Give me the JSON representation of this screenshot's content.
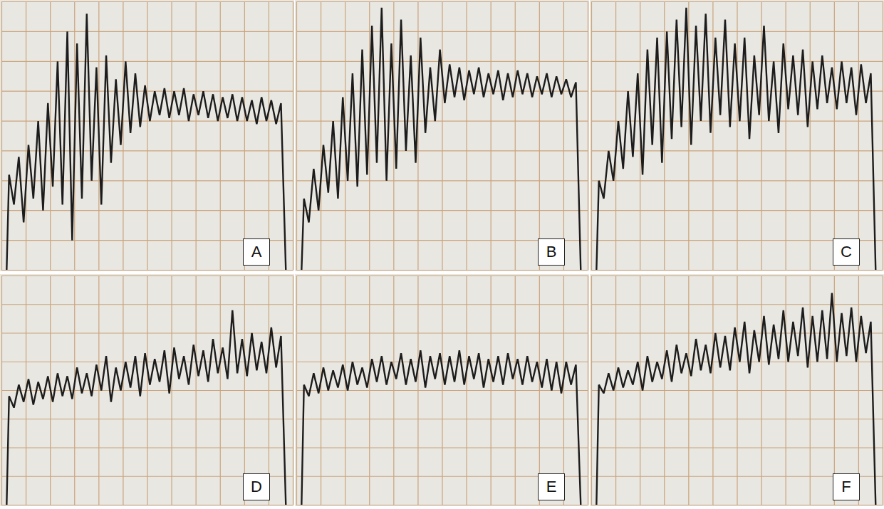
{
  "chart_data": [
    {
      "type": "line",
      "title": "A",
      "color": "#1c1c1c",
      "grid": true,
      "tick_labels": false,
      "xlim": [
        0,
        12
      ],
      "xticks": [
        0,
        1,
        2,
        3,
        4,
        5,
        6,
        7,
        8,
        9,
        10,
        11,
        12
      ],
      "ylim": [
        0,
        9
      ],
      "yticks": [
        0,
        1,
        2,
        3,
        4,
        5,
        6,
        7,
        8,
        9
      ],
      "x": [
        0.2,
        0.3,
        0.5,
        0.7,
        0.9,
        1.1,
        1.3,
        1.5,
        1.7,
        1.9,
        2.1,
        2.3,
        2.5,
        2.7,
        2.9,
        3.1,
        3.3,
        3.5,
        3.7,
        3.9,
        4.1,
        4.3,
        4.5,
        4.7,
        4.9,
        5.1,
        5.3,
        5.5,
        5.7,
        5.9,
        6.1,
        6.3,
        6.5,
        6.7,
        6.9,
        7.1,
        7.3,
        7.5,
        7.7,
        7.9,
        8.1,
        8.3,
        8.5,
        8.7,
        8.9,
        9.1,
        9.3,
        9.5,
        9.7,
        9.9,
        10.1,
        10.3,
        10.5,
        10.7,
        10.9,
        11.1,
        11.3,
        11.5,
        11.7
      ],
      "values": [
        0,
        3.2,
        2.2,
        3.8,
        1.6,
        4.2,
        2.4,
        5.0,
        2.0,
        5.6,
        2.8,
        7.0,
        2.2,
        8.0,
        1.0,
        7.6,
        2.4,
        8.6,
        3.0,
        6.8,
        2.2,
        7.2,
        3.6,
        6.4,
        4.2,
        7.0,
        4.6,
        6.6,
        4.8,
        6.2,
        5.0,
        6.0,
        5.2,
        6.1,
        5.1,
        6.0,
        5.2,
        6.1,
        5.0,
        5.9,
        5.2,
        6.0,
        5.1,
        5.9,
        5.0,
        5.8,
        5.1,
        5.9,
        5.0,
        5.8,
        5.0,
        5.7,
        4.9,
        5.8,
        5.0,
        5.7,
        4.9,
        5.6,
        0
      ]
    },
    {
      "type": "line",
      "title": "B",
      "color": "#1c1c1c",
      "grid": true,
      "tick_labels": false,
      "xlim": [
        0,
        12
      ],
      "xticks": [
        0,
        1,
        2,
        3,
        4,
        5,
        6,
        7,
        8,
        9,
        10,
        11,
        12
      ],
      "ylim": [
        0,
        9
      ],
      "yticks": [
        0,
        1,
        2,
        3,
        4,
        5,
        6,
        7,
        8,
        9
      ],
      "x": [
        0.2,
        0.3,
        0.5,
        0.7,
        0.9,
        1.1,
        1.3,
        1.5,
        1.7,
        1.9,
        2.1,
        2.3,
        2.5,
        2.7,
        2.9,
        3.1,
        3.3,
        3.5,
        3.7,
        3.9,
        4.1,
        4.3,
        4.5,
        4.7,
        4.9,
        5.1,
        5.3,
        5.5,
        5.7,
        5.9,
        6.1,
        6.3,
        6.5,
        6.7,
        6.9,
        7.1,
        7.3,
        7.5,
        7.7,
        7.9,
        8.1,
        8.3,
        8.5,
        8.7,
        8.9,
        9.1,
        9.3,
        9.5,
        9.7,
        9.9,
        10.1,
        10.3,
        10.5,
        10.7,
        10.9,
        11.1,
        11.3,
        11.5,
        11.7
      ],
      "values": [
        0,
        2.4,
        1.6,
        3.4,
        2.0,
        4.2,
        2.6,
        5.0,
        2.4,
        5.8,
        3.0,
        6.6,
        2.8,
        7.4,
        3.2,
        8.2,
        3.6,
        8.8,
        3.0,
        7.6,
        3.4,
        8.4,
        4.0,
        7.2,
        3.6,
        7.8,
        4.6,
        6.8,
        5.0,
        7.4,
        5.6,
        6.9,
        5.8,
        6.8,
        5.7,
        6.7,
        5.9,
        6.8,
        5.8,
        6.6,
        5.9,
        6.7,
        5.7,
        6.6,
        5.8,
        6.7,
        5.9,
        6.6,
        5.8,
        6.5,
        5.9,
        6.6,
        5.8,
        6.5,
        5.9,
        6.4,
        5.8,
        6.3,
        0
      ]
    },
    {
      "type": "line",
      "title": "C",
      "color": "#1c1c1c",
      "grid": true,
      "tick_labels": false,
      "xlim": [
        0,
        12
      ],
      "xticks": [
        0,
        1,
        2,
        3,
        4,
        5,
        6,
        7,
        8,
        9,
        10,
        11,
        12
      ],
      "ylim": [
        0,
        9
      ],
      "yticks": [
        0,
        1,
        2,
        3,
        4,
        5,
        6,
        7,
        8,
        9
      ],
      "x": [
        0.2,
        0.3,
        0.5,
        0.7,
        0.9,
        1.1,
        1.3,
        1.5,
        1.7,
        1.9,
        2.1,
        2.3,
        2.5,
        2.7,
        2.9,
        3.1,
        3.3,
        3.5,
        3.7,
        3.9,
        4.1,
        4.3,
        4.5,
        4.7,
        4.9,
        5.1,
        5.3,
        5.5,
        5.7,
        5.9,
        6.1,
        6.3,
        6.5,
        6.7,
        6.9,
        7.1,
        7.3,
        7.5,
        7.7,
        7.9,
        8.1,
        8.3,
        8.5,
        8.7,
        8.9,
        9.1,
        9.3,
        9.5,
        9.7,
        9.9,
        10.1,
        10.3,
        10.5,
        10.7,
        10.9,
        11.1,
        11.3,
        11.5,
        11.7
      ],
      "values": [
        0,
        3.0,
        2.4,
        4.0,
        3.0,
        5.0,
        3.4,
        6.0,
        3.8,
        6.6,
        3.2,
        7.4,
        4.2,
        7.8,
        3.6,
        8.0,
        4.4,
        8.4,
        4.8,
        8.8,
        4.2,
        8.2,
        5.0,
        8.6,
        4.6,
        7.8,
        5.2,
        8.4,
        4.8,
        7.6,
        5.0,
        7.8,
        4.4,
        7.2,
        5.2,
        8.2,
        5.0,
        7.0,
        4.6,
        7.6,
        5.4,
        7.2,
        5.2,
        7.4,
        4.8,
        7.0,
        5.4,
        7.2,
        5.6,
        6.8,
        5.4,
        7.0,
        5.6,
        6.8,
        5.2,
        6.9,
        5.6,
        6.6,
        0
      ]
    },
    {
      "type": "line",
      "title": "D",
      "color": "#1c1c1c",
      "grid": true,
      "tick_labels": false,
      "xlim": [
        0,
        12
      ],
      "xticks": [
        0,
        1,
        2,
        3,
        4,
        5,
        6,
        7,
        8,
        9,
        10,
        11,
        12
      ],
      "ylim": [
        0,
        8
      ],
      "yticks": [
        0,
        1,
        2,
        3,
        4,
        5,
        6,
        7,
        8
      ],
      "x": [
        0.2,
        0.3,
        0.5,
        0.7,
        0.9,
        1.1,
        1.3,
        1.5,
        1.7,
        1.9,
        2.1,
        2.3,
        2.5,
        2.7,
        2.9,
        3.1,
        3.3,
        3.5,
        3.7,
        3.9,
        4.1,
        4.3,
        4.5,
        4.7,
        4.9,
        5.1,
        5.3,
        5.5,
        5.7,
        5.9,
        6.1,
        6.3,
        6.5,
        6.7,
        6.9,
        7.1,
        7.3,
        7.5,
        7.7,
        7.9,
        8.1,
        8.3,
        8.5,
        8.7,
        8.9,
        9.1,
        9.3,
        9.5,
        9.7,
        9.9,
        10.1,
        10.3,
        10.5,
        10.7,
        10.9,
        11.1,
        11.3,
        11.5,
        11.7
      ],
      "values": [
        0,
        3.8,
        3.4,
        4.2,
        3.6,
        4.4,
        3.5,
        4.3,
        3.7,
        4.5,
        3.6,
        4.6,
        3.8,
        4.5,
        3.7,
        4.8,
        3.9,
        4.6,
        3.8,
        4.9,
        4.0,
        5.2,
        3.6,
        4.8,
        4.0,
        5.0,
        4.1,
        5.2,
        3.8,
        5.3,
        4.2,
        5.1,
        4.3,
        5.4,
        3.9,
        5.5,
        4.4,
        5.2,
        4.2,
        5.6,
        4.5,
        5.4,
        4.3,
        5.8,
        4.6,
        5.5,
        4.4,
        6.8,
        4.6,
        5.8,
        4.5,
        6.0,
        4.7,
        5.7,
        4.6,
        6.2,
        4.8,
        5.9,
        0
      ]
    },
    {
      "type": "line",
      "title": "E",
      "color": "#1c1c1c",
      "grid": true,
      "tick_labels": false,
      "xlim": [
        0,
        12
      ],
      "xticks": [
        0,
        1,
        2,
        3,
        4,
        5,
        6,
        7,
        8,
        9,
        10,
        11,
        12
      ],
      "ylim": [
        0,
        8
      ],
      "yticks": [
        0,
        1,
        2,
        3,
        4,
        5,
        6,
        7,
        8
      ],
      "x": [
        0.2,
        0.3,
        0.5,
        0.7,
        0.9,
        1.1,
        1.3,
        1.5,
        1.7,
        1.9,
        2.1,
        2.3,
        2.5,
        2.7,
        2.9,
        3.1,
        3.3,
        3.5,
        3.7,
        3.9,
        4.1,
        4.3,
        4.5,
        4.7,
        4.9,
        5.1,
        5.3,
        5.5,
        5.7,
        5.9,
        6.1,
        6.3,
        6.5,
        6.7,
        6.9,
        7.1,
        7.3,
        7.5,
        7.7,
        7.9,
        8.1,
        8.3,
        8.5,
        8.7,
        8.9,
        9.1,
        9.3,
        9.5,
        9.7,
        9.9,
        10.1,
        10.3,
        10.5,
        10.7,
        10.9,
        11.1,
        11.3,
        11.5,
        11.7
      ],
      "values": [
        0,
        4.2,
        3.8,
        4.6,
        3.9,
        4.8,
        4.0,
        4.7,
        4.1,
        4.9,
        4.0,
        5.0,
        4.2,
        4.8,
        4.1,
        5.1,
        4.3,
        5.2,
        4.2,
        5.0,
        4.4,
        5.3,
        4.2,
        5.1,
        4.3,
        5.4,
        4.1,
        5.2,
        4.4,
        5.3,
        4.2,
        5.2,
        4.3,
        5.4,
        4.2,
        5.2,
        4.4,
        5.3,
        4.1,
        5.1,
        4.3,
        5.2,
        4.2,
        5.3,
        4.4,
        5.1,
        4.2,
        5.2,
        4.3,
        5.0,
        4.1,
        5.1,
        4.0,
        5.0,
        3.9,
        5.0,
        4.2,
        4.9,
        0
      ]
    },
    {
      "type": "line",
      "title": "F",
      "color": "#1c1c1c",
      "grid": true,
      "tick_labels": false,
      "xlim": [
        0,
        12
      ],
      "xticks": [
        0,
        1,
        2,
        3,
        4,
        5,
        6,
        7,
        8,
        9,
        10,
        11,
        12
      ],
      "ylim": [
        0,
        8
      ],
      "yticks": [
        0,
        1,
        2,
        3,
        4,
        5,
        6,
        7,
        8
      ],
      "x": [
        0.2,
        0.3,
        0.5,
        0.7,
        0.9,
        1.1,
        1.3,
        1.5,
        1.7,
        1.9,
        2.1,
        2.3,
        2.5,
        2.7,
        2.9,
        3.1,
        3.3,
        3.5,
        3.7,
        3.9,
        4.1,
        4.3,
        4.5,
        4.7,
        4.9,
        5.1,
        5.3,
        5.5,
        5.7,
        5.9,
        6.1,
        6.3,
        6.5,
        6.7,
        6.9,
        7.1,
        7.3,
        7.5,
        7.7,
        7.9,
        8.1,
        8.3,
        8.5,
        8.7,
        8.9,
        9.1,
        9.3,
        9.5,
        9.7,
        9.9,
        10.1,
        10.3,
        10.5,
        10.7,
        10.9,
        11.1,
        11.3,
        11.5,
        11.7
      ],
      "values": [
        0,
        4.2,
        3.9,
        4.6,
        4.0,
        4.8,
        4.1,
        4.7,
        4.2,
        5.0,
        4.0,
        5.2,
        4.3,
        5.0,
        4.4,
        5.4,
        4.3,
        5.6,
        4.6,
        5.3,
        4.5,
        5.8,
        4.7,
        5.6,
        4.6,
        6.0,
        4.8,
        5.9,
        4.7,
        6.2,
        5.0,
        6.4,
        4.6,
        6.1,
        5.0,
        6.6,
        4.9,
        6.3,
        5.1,
        6.8,
        5.0,
        6.4,
        5.2,
        6.9,
        4.8,
        6.6,
        5.0,
        6.8,
        5.1,
        7.4,
        5.0,
        6.7,
        5.2,
        6.9,
        5.0,
        6.6,
        5.3,
        6.4,
        0
      ]
    }
  ]
}
